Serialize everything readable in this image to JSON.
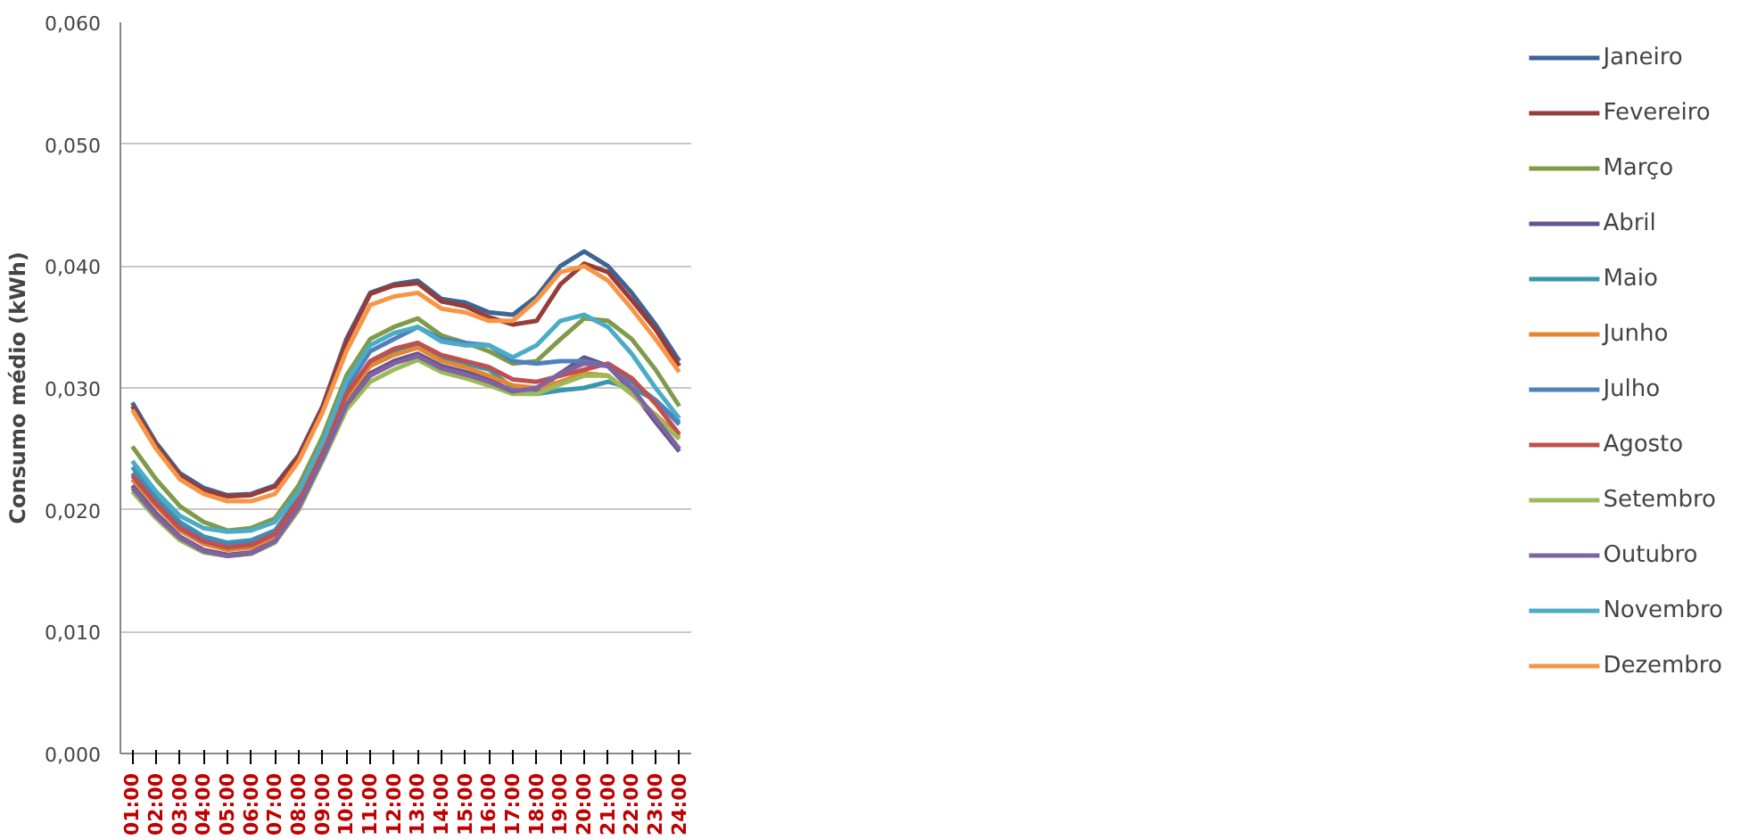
{
  "chart_data": {
    "type": "line",
    "ylabel": "Consumo médio (kWh)",
    "categories": [
      "01:00",
      "02:00",
      "03:00",
      "04:00",
      "05:00",
      "06:00",
      "07:00",
      "08:00",
      "09:00",
      "10:00",
      "11:00",
      "12:00",
      "13:00",
      "14:00",
      "15:00",
      "16:00",
      "17:00",
      "18:00",
      "19:00",
      "20:00",
      "21:00",
      "22:00",
      "23:00",
      "24:00"
    ],
    "ylim": [
      0,
      0.06
    ],
    "yticks": [
      {
        "value": 0,
        "label": "0,000"
      },
      {
        "value": 0.01,
        "label": "0,010"
      },
      {
        "value": 0.02,
        "label": "0,020"
      },
      {
        "value": 0.03,
        "label": "0,030"
      },
      {
        "value": 0.04,
        "label": "0,040"
      },
      {
        "value": 0.05,
        "label": "0,050"
      },
      {
        "value": 0.06,
        "label": "0,060"
      }
    ],
    "grid": "y",
    "legend": "right",
    "marker": "none",
    "line_style": "solid",
    "series": [
      {
        "name": "Janeiro",
        "color": "#3c6496",
        "values": [
          0.0288,
          0.0255,
          0.023,
          0.0218,
          0.0212,
          0.0213,
          0.022,
          0.0245,
          0.0285,
          0.034,
          0.0378,
          0.0385,
          0.0388,
          0.0373,
          0.037,
          0.0362,
          0.036,
          0.0375,
          0.04,
          0.0412,
          0.04,
          0.0378,
          0.0352,
          0.0322
        ]
      },
      {
        "name": "Fevereiro",
        "color": "#983c3a",
        "values": [
          0.0285,
          0.0253,
          0.0228,
          0.0216,
          0.0211,
          0.0212,
          0.0219,
          0.0244,
          0.0284,
          0.0338,
          0.0377,
          0.0384,
          0.0386,
          0.0371,
          0.0367,
          0.0358,
          0.0352,
          0.0355,
          0.0385,
          0.0402,
          0.0395,
          0.0372,
          0.0348,
          0.0318
        ]
      },
      {
        "name": "Março",
        "color": "#7f9a48",
        "values": [
          0.0252,
          0.0225,
          0.0203,
          0.019,
          0.0183,
          0.0185,
          0.0193,
          0.022,
          0.026,
          0.031,
          0.034,
          0.035,
          0.0357,
          0.0343,
          0.0337,
          0.033,
          0.032,
          0.0322,
          0.034,
          0.0357,
          0.0355,
          0.034,
          0.0315,
          0.0285
        ]
      },
      {
        "name": "Abril",
        "color": "#67538a",
        "values": [
          0.022,
          0.0197,
          0.0178,
          0.0167,
          0.0163,
          0.0165,
          0.0175,
          0.0203,
          0.0243,
          0.0288,
          0.0312,
          0.0322,
          0.0328,
          0.0318,
          0.0313,
          0.0307,
          0.0297,
          0.0298,
          0.0312,
          0.0325,
          0.0318,
          0.0298,
          0.0272,
          0.0248
        ]
      },
      {
        "name": "Maio",
        "color": "#3a95ad",
        "values": [
          0.0235,
          0.021,
          0.019,
          0.0178,
          0.0173,
          0.0175,
          0.0183,
          0.021,
          0.025,
          0.0295,
          0.032,
          0.033,
          0.0335,
          0.0325,
          0.032,
          0.0315,
          0.03,
          0.0295,
          0.0298,
          0.03,
          0.0305,
          0.03,
          0.029,
          0.0272
        ]
      },
      {
        "name": "Junho",
        "color": "#e58633",
        "values": [
          0.0225,
          0.0203,
          0.0183,
          0.0172,
          0.0167,
          0.0169,
          0.0178,
          0.0206,
          0.0246,
          0.0292,
          0.0318,
          0.0327,
          0.0333,
          0.0322,
          0.0317,
          0.031,
          0.0302,
          0.03,
          0.0305,
          0.0312,
          0.031,
          0.0295,
          0.0278,
          0.026
        ]
      },
      {
        "name": "Julho",
        "color": "#4f81bd",
        "values": [
          0.023,
          0.0207,
          0.0187,
          0.0176,
          0.0171,
          0.0173,
          0.0182,
          0.021,
          0.0252,
          0.03,
          0.033,
          0.034,
          0.035,
          0.034,
          0.0337,
          0.0335,
          0.0322,
          0.032,
          0.0322,
          0.0322,
          0.0318,
          0.0305,
          0.029,
          0.027
        ]
      },
      {
        "name": "Agosto",
        "color": "#c0504d",
        "values": [
          0.0228,
          0.0205,
          0.0185,
          0.0174,
          0.0169,
          0.0171,
          0.018,
          0.0208,
          0.0248,
          0.0295,
          0.0322,
          0.0332,
          0.0337,
          0.0327,
          0.0322,
          0.0317,
          0.0307,
          0.0305,
          0.031,
          0.0315,
          0.032,
          0.0308,
          0.0287,
          0.0262
        ]
      },
      {
        "name": "Setembro",
        "color": "#9bbb59",
        "values": [
          0.0215,
          0.0193,
          0.0175,
          0.0165,
          0.0162,
          0.0164,
          0.0173,
          0.02,
          0.024,
          0.0282,
          0.0305,
          0.0315,
          0.0323,
          0.0313,
          0.0308,
          0.0302,
          0.0295,
          0.0295,
          0.0303,
          0.031,
          0.031,
          0.0295,
          0.0277,
          0.0258
        ]
      },
      {
        "name": "Outubro",
        "color": "#8064a2",
        "values": [
          0.0218,
          0.0195,
          0.0177,
          0.0166,
          0.0162,
          0.0164,
          0.0174,
          0.0202,
          0.0242,
          0.0286,
          0.031,
          0.032,
          0.0326,
          0.0316,
          0.0311,
          0.0305,
          0.0297,
          0.03,
          0.0312,
          0.032,
          0.0318,
          0.03,
          0.0275,
          0.025
        ]
      },
      {
        "name": "Novembro",
        "color": "#4bacc6",
        "values": [
          0.024,
          0.0215,
          0.0195,
          0.0185,
          0.0182,
          0.0183,
          0.019,
          0.0215,
          0.0255,
          0.0305,
          0.0335,
          0.0345,
          0.035,
          0.0338,
          0.0335,
          0.0335,
          0.0325,
          0.0335,
          0.0355,
          0.036,
          0.035,
          0.0328,
          0.03,
          0.0275
        ]
      },
      {
        "name": "Dezembro",
        "color": "#f79646",
        "values": [
          0.0282,
          0.025,
          0.0225,
          0.0213,
          0.0207,
          0.0207,
          0.0213,
          0.024,
          0.028,
          0.033,
          0.0368,
          0.0375,
          0.0378,
          0.0365,
          0.0362,
          0.0355,
          0.0355,
          0.0372,
          0.0395,
          0.04,
          0.0388,
          0.0365,
          0.034,
          0.0313
        ]
      }
    ]
  }
}
